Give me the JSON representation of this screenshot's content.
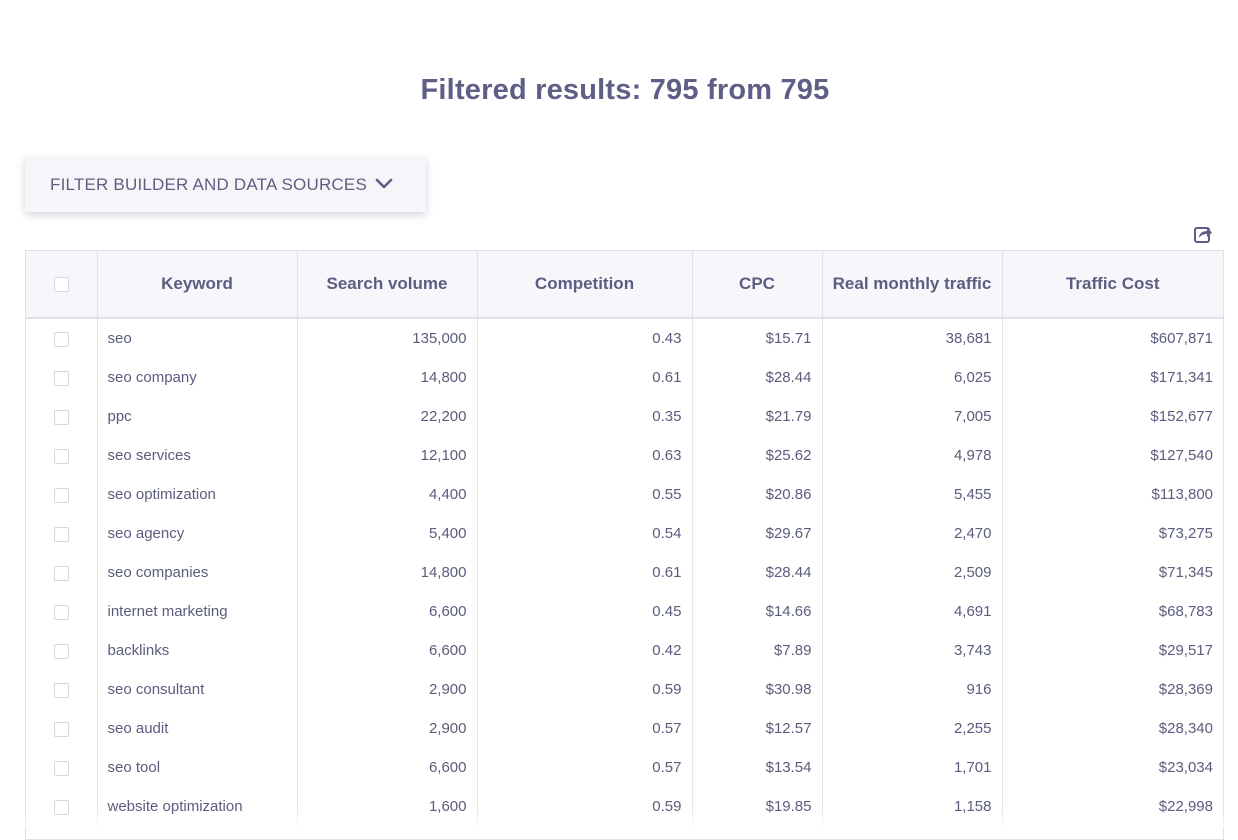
{
  "header": {
    "title": "Filtered results: 795 from 795"
  },
  "filter": {
    "label": "FILTER BUILDER AND DATA SOURCES",
    "icon": "chevron-down-icon"
  },
  "toolbar": {
    "export_icon": "export-icon"
  },
  "table": {
    "columns": [
      "Keyword",
      "Search volume",
      "Competition",
      "CPC",
      "Real monthly traffic",
      "Traffic Cost"
    ],
    "rows": [
      {
        "keyword": "seo",
        "volume": "135,000",
        "competition": "0.43",
        "cpc": "$15.71",
        "traffic": "38,681",
        "cost": "$607,871"
      },
      {
        "keyword": "seo company",
        "volume": "14,800",
        "competition": "0.61",
        "cpc": "$28.44",
        "traffic": "6,025",
        "cost": "$171,341"
      },
      {
        "keyword": "ppc",
        "volume": "22,200",
        "competition": "0.35",
        "cpc": "$21.79",
        "traffic": "7,005",
        "cost": "$152,677"
      },
      {
        "keyword": "seo services",
        "volume": "12,100",
        "competition": "0.63",
        "cpc": "$25.62",
        "traffic": "4,978",
        "cost": "$127,540"
      },
      {
        "keyword": "seo optimization",
        "volume": "4,400",
        "competition": "0.55",
        "cpc": "$20.86",
        "traffic": "5,455",
        "cost": "$113,800"
      },
      {
        "keyword": "seo agency",
        "volume": "5,400",
        "competition": "0.54",
        "cpc": "$29.67",
        "traffic": "2,470",
        "cost": "$73,275"
      },
      {
        "keyword": "seo companies",
        "volume": "14,800",
        "competition": "0.61",
        "cpc": "$28.44",
        "traffic": "2,509",
        "cost": "$71,345"
      },
      {
        "keyword": "internet marketing",
        "volume": "6,600",
        "competition": "0.45",
        "cpc": "$14.66",
        "traffic": "4,691",
        "cost": "$68,783"
      },
      {
        "keyword": "backlinks",
        "volume": "6,600",
        "competition": "0.42",
        "cpc": "$7.89",
        "traffic": "3,743",
        "cost": "$29,517"
      },
      {
        "keyword": "seo consultant",
        "volume": "2,900",
        "competition": "0.59",
        "cpc": "$30.98",
        "traffic": "916",
        "cost": "$28,369"
      },
      {
        "keyword": "seo audit",
        "volume": "2,900",
        "competition": "0.57",
        "cpc": "$12.57",
        "traffic": "2,255",
        "cost": "$28,340"
      },
      {
        "keyword": "seo tool",
        "volume": "6,600",
        "competition": "0.57",
        "cpc": "$13.54",
        "traffic": "1,701",
        "cost": "$23,034"
      },
      {
        "keyword": "website optimization",
        "volume": "1,600",
        "competition": "0.59",
        "cpc": "$19.85",
        "traffic": "1,158",
        "cost": "$22,998"
      }
    ]
  }
}
